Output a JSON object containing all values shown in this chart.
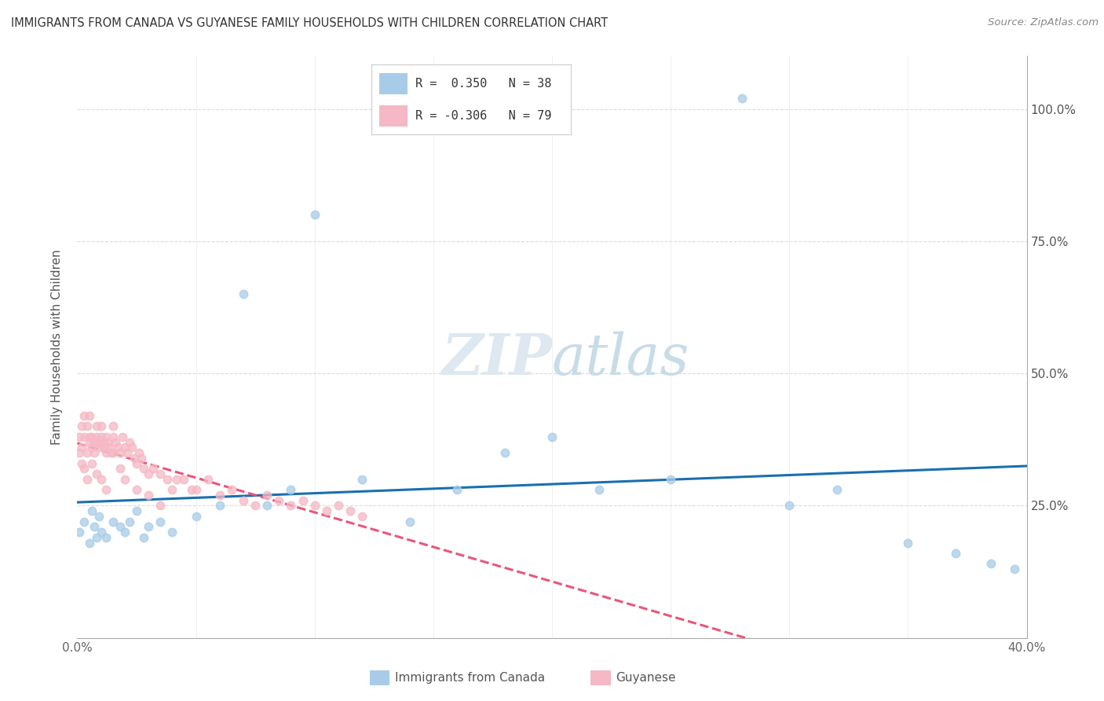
{
  "title": "IMMIGRANTS FROM CANADA VS GUYANESE FAMILY HOUSEHOLDS WITH CHILDREN CORRELATION CHART",
  "source": "Source: ZipAtlas.com",
  "ylabel": "Family Households with Children",
  "legend_canada_R": "0.350",
  "legend_canada_N": "38",
  "legend_guyanese_R": "-0.306",
  "legend_guyanese_N": "79",
  "color_canada": "#a8cce8",
  "color_guyanese": "#f5b8c4",
  "color_canada_line": "#1a6faf",
  "color_guyanese_line": "#e8567a",
  "watermark_color": "#dde8f0",
  "canada_scatter_x": [
    0.001,
    0.003,
    0.005,
    0.006,
    0.007,
    0.008,
    0.009,
    0.01,
    0.012,
    0.015,
    0.018,
    0.02,
    0.022,
    0.025,
    0.028,
    0.03,
    0.035,
    0.04,
    0.05,
    0.06,
    0.07,
    0.08,
    0.09,
    0.1,
    0.12,
    0.14,
    0.16,
    0.18,
    0.2,
    0.22,
    0.25,
    0.28,
    0.3,
    0.32,
    0.35,
    0.37,
    0.385,
    0.395
  ],
  "canada_scatter_y": [
    0.2,
    0.22,
    0.18,
    0.24,
    0.21,
    0.19,
    0.23,
    0.2,
    0.19,
    0.22,
    0.21,
    0.2,
    0.22,
    0.24,
    0.19,
    0.21,
    0.22,
    0.2,
    0.23,
    0.25,
    0.65,
    0.25,
    0.28,
    0.8,
    0.3,
    0.22,
    0.28,
    0.35,
    0.38,
    0.28,
    0.3,
    1.02,
    0.25,
    0.28,
    0.18,
    0.16,
    0.14,
    0.13
  ],
  "guyanese_scatter_x": [
    0.001,
    0.001,
    0.002,
    0.002,
    0.003,
    0.003,
    0.004,
    0.004,
    0.005,
    0.005,
    0.005,
    0.006,
    0.006,
    0.007,
    0.007,
    0.008,
    0.008,
    0.009,
    0.009,
    0.01,
    0.01,
    0.011,
    0.011,
    0.012,
    0.012,
    0.013,
    0.013,
    0.014,
    0.015,
    0.015,
    0.016,
    0.017,
    0.018,
    0.019,
    0.02,
    0.021,
    0.022,
    0.023,
    0.024,
    0.025,
    0.026,
    0.027,
    0.028,
    0.03,
    0.032,
    0.035,
    0.038,
    0.04,
    0.042,
    0.045,
    0.048,
    0.05,
    0.055,
    0.06,
    0.065,
    0.07,
    0.075,
    0.08,
    0.085,
    0.09,
    0.095,
    0.1,
    0.105,
    0.11,
    0.115,
    0.12,
    0.002,
    0.003,
    0.004,
    0.006,
    0.008,
    0.01,
    0.012,
    0.015,
    0.018,
    0.02,
    0.025,
    0.03,
    0.035
  ],
  "guyanese_scatter_y": [
    0.35,
    0.38,
    0.4,
    0.36,
    0.42,
    0.38,
    0.35,
    0.4,
    0.37,
    0.38,
    0.42,
    0.36,
    0.38,
    0.37,
    0.35,
    0.38,
    0.4,
    0.36,
    0.37,
    0.38,
    0.4,
    0.36,
    0.37,
    0.35,
    0.38,
    0.36,
    0.37,
    0.35,
    0.38,
    0.4,
    0.37,
    0.36,
    0.35,
    0.38,
    0.36,
    0.35,
    0.37,
    0.36,
    0.34,
    0.33,
    0.35,
    0.34,
    0.32,
    0.31,
    0.32,
    0.31,
    0.3,
    0.28,
    0.3,
    0.3,
    0.28,
    0.28,
    0.3,
    0.27,
    0.28,
    0.26,
    0.25,
    0.27,
    0.26,
    0.25,
    0.26,
    0.25,
    0.24,
    0.25,
    0.24,
    0.23,
    0.33,
    0.32,
    0.3,
    0.33,
    0.31,
    0.3,
    0.28,
    0.35,
    0.32,
    0.3,
    0.28,
    0.27,
    0.25
  ],
  "xlim": [
    0.0,
    0.4
  ],
  "ylim": [
    0.0,
    1.1
  ],
  "ytick_vals": [
    0.0,
    0.25,
    0.5,
    0.75,
    1.0
  ],
  "ytick_labels_right": [
    "",
    "25.0%",
    "50.0%",
    "75.0%",
    "100.0%"
  ],
  "xtick_vals": [
    0.0,
    0.05,
    0.1,
    0.15,
    0.2,
    0.25,
    0.3,
    0.35,
    0.4
  ],
  "xtick_labels": [
    "0.0%",
    "",
    "",
    "",
    "",
    "",
    "",
    "",
    "40.0%"
  ]
}
